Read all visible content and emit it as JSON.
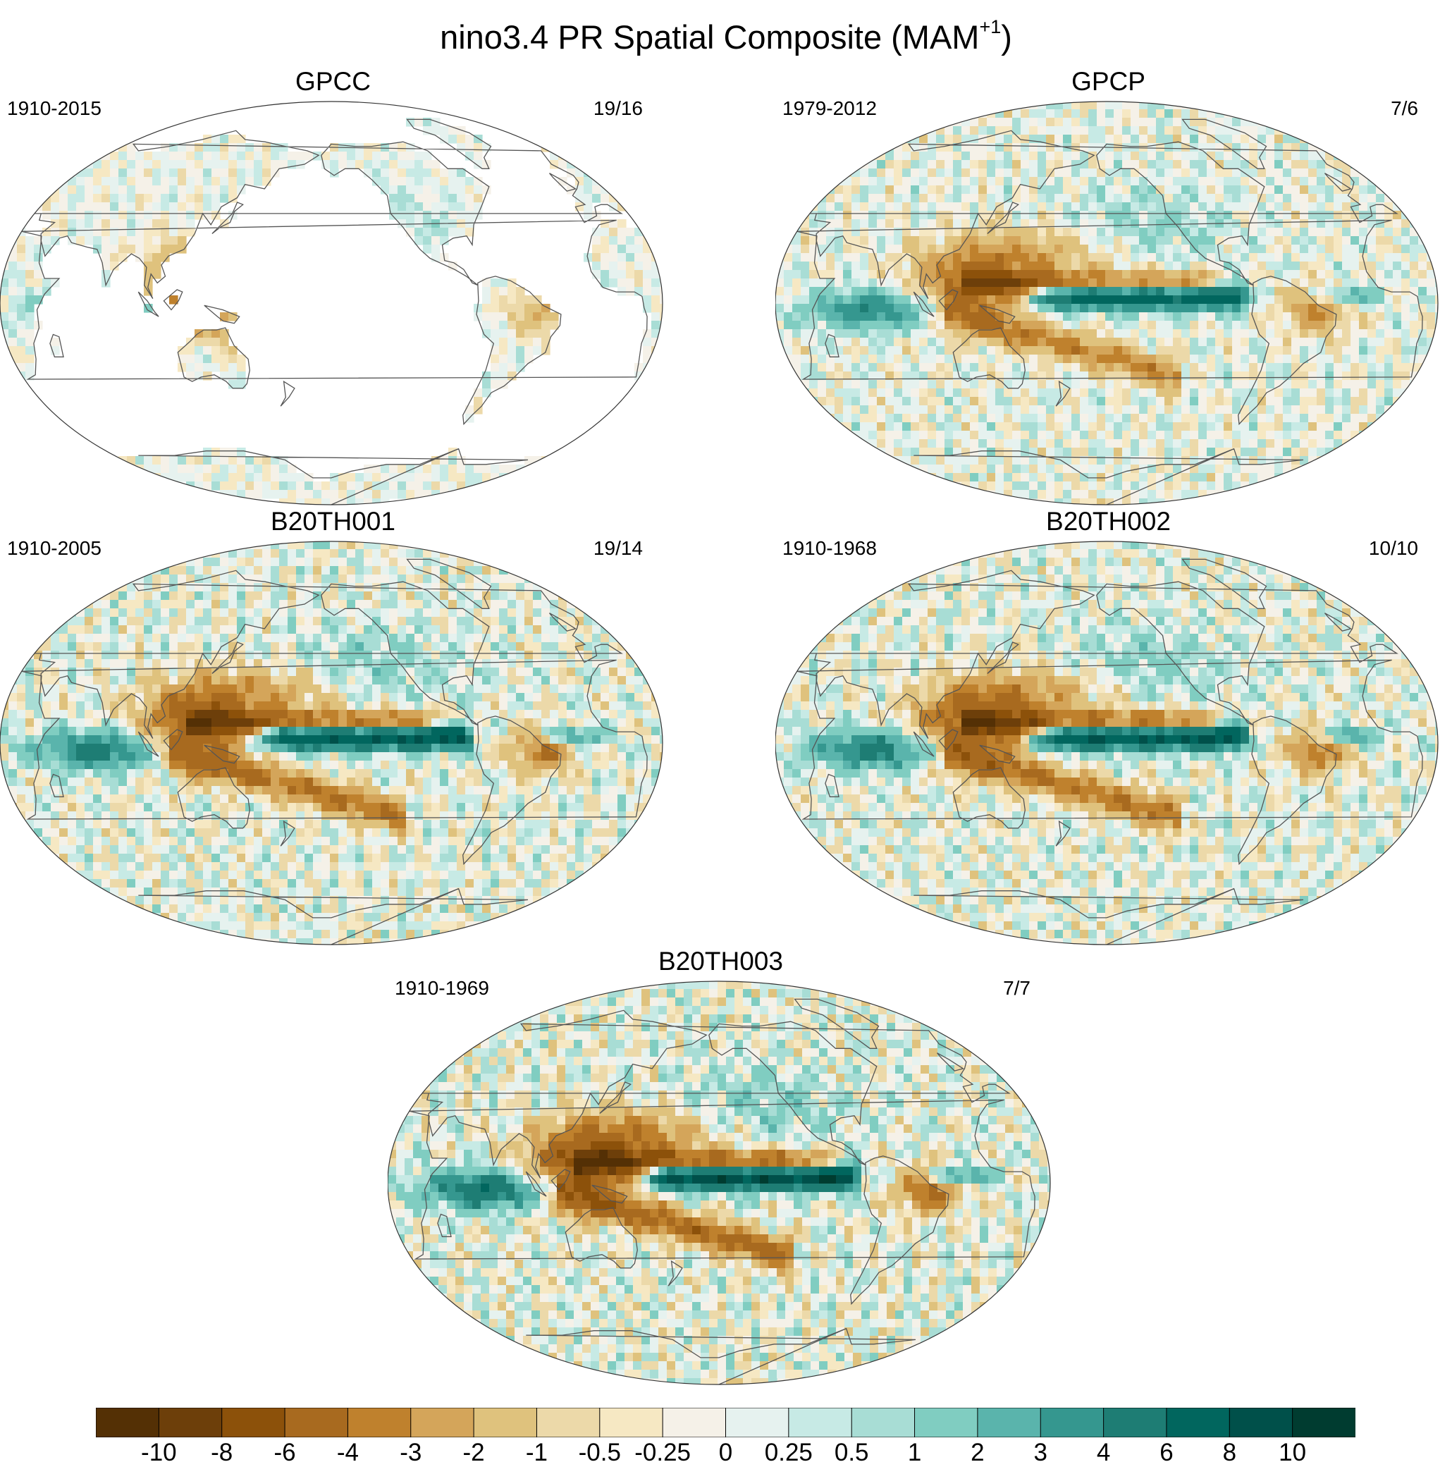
{
  "title": {
    "text": "nino3.4 PR Spatial Composite (MAM",
    "superscript": "+1",
    "suffix": ")"
  },
  "colorbar": {
    "labels": [
      "-10",
      "-8",
      "-6",
      "-4",
      "-3",
      "-2",
      "-1",
      "-0.5",
      "-0.25",
      "0",
      "0.25",
      "0.5",
      "1",
      "2",
      "3",
      "4",
      "6",
      "8",
      "10"
    ],
    "colors": [
      "#543005",
      "#6d3f0a",
      "#8c510a",
      "#a86a1f",
      "#bf812d",
      "#d4a55a",
      "#dfc27d",
      "#ecd9a9",
      "#f6e8c3",
      "#f5f1e8",
      "#e6f2ef",
      "#c7eae5",
      "#a8ddd5",
      "#80cdc1",
      "#5ab4ac",
      "#35978f",
      "#1e7d74",
      "#01665e",
      "#00504a",
      "#003c30"
    ]
  },
  "panels": [
    {
      "id": "gpcc",
      "title": "GPCC",
      "period": "1910-2015",
      "count": "19/16",
      "ocean": false,
      "strength": 0.55
    },
    {
      "id": "gpcp",
      "title": "GPCP",
      "period": "1979-2012",
      "count": "7/6",
      "ocean": true,
      "strength": 0.85
    },
    {
      "id": "b20th001",
      "title": "B20TH001",
      "period": "1910-2005",
      "count": "19/14",
      "ocean": true,
      "strength": 1.0
    },
    {
      "id": "b20th002",
      "title": "B20TH002",
      "period": "1910-1968",
      "count": "10/10",
      "ocean": true,
      "strength": 1.0
    },
    {
      "id": "b20th003",
      "title": "B20TH003",
      "period": "1910-1969",
      "count": "7/7",
      "ocean": true,
      "strength": 1.15
    }
  ]
}
